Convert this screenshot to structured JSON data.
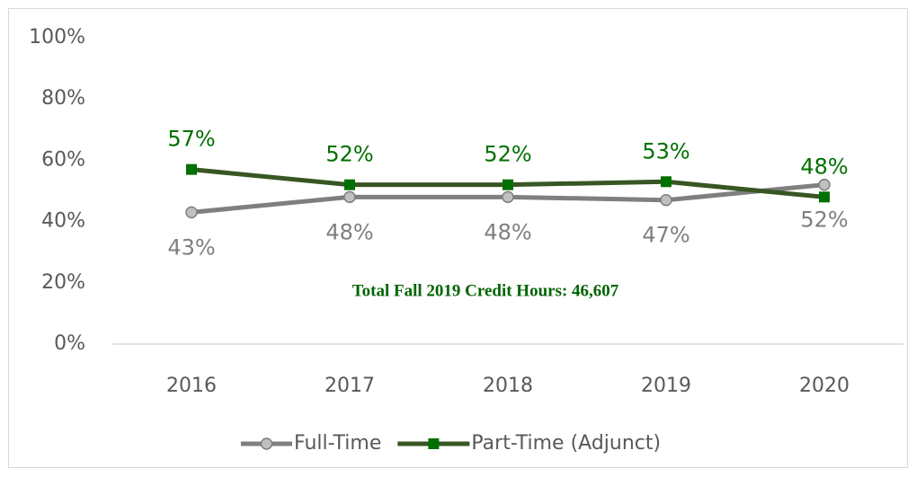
{
  "chart_data": {
    "type": "line",
    "categories": [
      "2016",
      "2017",
      "2018",
      "2019",
      "2020"
    ],
    "series": [
      {
        "name": "Full-Time",
        "color": "#7f7f7f",
        "marker": "circle",
        "marker_color": "#c0c0c0",
        "label_color": "#7f7f7f",
        "label_position": "below",
        "values": [
          43,
          48,
          48,
          47,
          52
        ],
        "value_labels": [
          "43%",
          "48%",
          "48%",
          "47%",
          "52%"
        ]
      },
      {
        "name": "Part-Time (Adjunct)",
        "color": "#375623",
        "marker": "square",
        "marker_color": "#007000",
        "label_color": "#007000",
        "label_position": "above",
        "values": [
          57,
          52,
          52,
          53,
          48
        ],
        "value_labels": [
          "57%",
          "52%",
          "52%",
          "53%",
          "48%"
        ]
      }
    ],
    "ylim": [
      0,
      100
    ],
    "yticks": [
      {
        "value": 0,
        "label": "0%"
      },
      {
        "value": 20,
        "label": "20%"
      },
      {
        "value": 40,
        "label": "40%"
      },
      {
        "value": 60,
        "label": "60%"
      },
      {
        "value": 80,
        "label": "80%"
      },
      {
        "value": 100,
        "label": "100%"
      }
    ],
    "grid": false,
    "legend": "bottom",
    "annotation": "Total Fall 2019 Credit Hours: 46,607",
    "annotation_color": "#006400"
  }
}
